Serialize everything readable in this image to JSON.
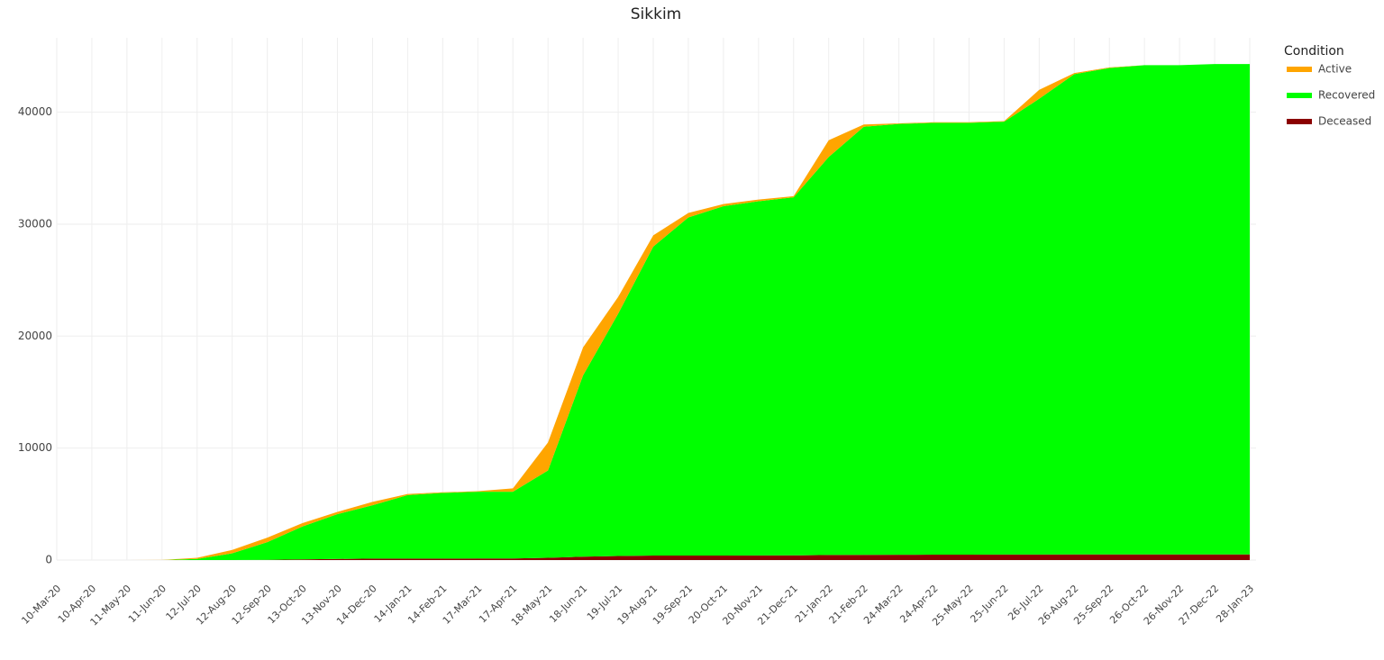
{
  "chart_data": {
    "type": "stacked-area",
    "title": "Sikkim",
    "legend_title": "Condition",
    "categories": [
      "10-Mar-20",
      "10-Apr-20",
      "11-May-20",
      "11-Jun-20",
      "12-Jul-20",
      "12-Aug-20",
      "12-Sep-20",
      "13-Oct-20",
      "13-Nov-20",
      "14-Dec-20",
      "14-Jan-21",
      "14-Feb-21",
      "17-Mar-21",
      "17-Apr-21",
      "18-May-21",
      "18-Jun-21",
      "19-Jul-21",
      "19-Aug-21",
      "19-Sep-21",
      "20-Oct-21",
      "20-Nov-21",
      "21-Dec-21",
      "21-Jan-22",
      "21-Feb-22",
      "24-Mar-22",
      "24-Apr-22",
      "25-May-22",
      "25-Jun-22",
      "26-Jul-22",
      "26-Aug-22",
      "25-Sep-22",
      "26-Oct-22",
      "26-Nov-22",
      "27-Dec-22",
      "28-Jan-23"
    ],
    "series": [
      {
        "name": "Deceased",
        "color": "#8b0000",
        "values": [
          0,
          0,
          0,
          0,
          0,
          2,
          20,
          60,
          100,
          130,
          135,
          135,
          136,
          140,
          200,
          300,
          360,
          400,
          400,
          400,
          410,
          420,
          450,
          460,
          470,
          480,
          485,
          490,
          495,
          500,
          500,
          500,
          500,
          500,
          500
        ]
      },
      {
        "name": "Recovered",
        "color": "#00ff00",
        "values": [
          0,
          0,
          0,
          5,
          100,
          598,
          1580,
          2940,
          4000,
          4770,
          5665,
          5865,
          5964,
          5960,
          7800,
          16200,
          21640,
          27600,
          30200,
          31200,
          31640,
          31980,
          35550,
          38240,
          38480,
          38570,
          38565,
          38660,
          40705,
          42900,
          43450,
          43700,
          43700,
          43800,
          43800
        ]
      },
      {
        "name": "Active",
        "color": "#ffa500",
        "values": [
          0,
          0,
          0,
          5,
          100,
          300,
          400,
          300,
          200,
          300,
          100,
          50,
          50,
          300,
          2500,
          2500,
          1500,
          1000,
          400,
          200,
          150,
          100,
          1500,
          200,
          50,
          50,
          50,
          50,
          800,
          100,
          50,
          0,
          0,
          0,
          0
        ]
      }
    ],
    "legend_order": [
      "Active",
      "Recovered",
      "Deceased"
    ],
    "ylim": [
      0,
      46000
    ],
    "yticks": [
      0,
      10000,
      20000,
      30000,
      40000
    ],
    "grid": true
  }
}
